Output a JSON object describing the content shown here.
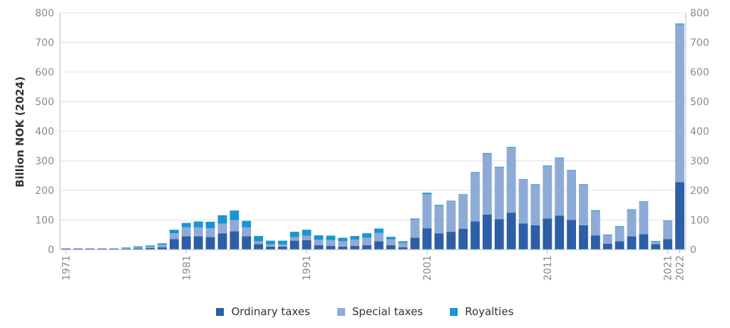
{
  "colors": {
    "ordinary": "#2d5fa8",
    "special": "#8eaad6",
    "royalties": "#1896d3",
    "grid": "#e3e3e3",
    "axis": "#bbbbbb"
  },
  "legend_labels": [
    "Ordinary taxes",
    "Special taxes",
    "Royalties"
  ],
  "chart_data": {
    "type": "bar",
    "stacked": true,
    "ylabel": "Billion NOK (2024)",
    "ylim": [
      0,
      800
    ],
    "yticks": [
      0,
      100,
      200,
      300,
      400,
      500,
      600,
      700,
      800
    ],
    "xticks": [
      "1971",
      "1981",
      "1991",
      "2001",
      "2011",
      "2021",
      "2022"
    ],
    "grid": true,
    "legend_position": "bottom",
    "categories": [
      "1971",
      "1972",
      "1973",
      "1974",
      "1975",
      "1976",
      "1977",
      "1978",
      "1979",
      "1980",
      "1981",
      "1982",
      "1983",
      "1984",
      "1985",
      "1986",
      "1987",
      "1988",
      "1989",
      "1990",
      "1991",
      "1992",
      "1993",
      "1994",
      "1995",
      "1996",
      "1997",
      "1998",
      "1999",
      "2000",
      "2001",
      "2002",
      "2003",
      "2004",
      "2005",
      "2006",
      "2007",
      "2008",
      "2009",
      "2010",
      "2011",
      "2012",
      "2013",
      "2014",
      "2015",
      "2016",
      "2017",
      "2018",
      "2019",
      "2020",
      "2021",
      "2022"
    ],
    "series": [
      {
        "name": "Ordinary taxes",
        "values": [
          0,
          0,
          0,
          0,
          0,
          3,
          4,
          5,
          8,
          35,
          45,
          45,
          42,
          55,
          62,
          45,
          18,
          10,
          10,
          30,
          32,
          15,
          12,
          10,
          12,
          15,
          28,
          15,
          8,
          40,
          72,
          55,
          60,
          70,
          95,
          118,
          103,
          125,
          88,
          82,
          105,
          115,
          100,
          82,
          48,
          20,
          28,
          45,
          52,
          18,
          35,
          228
        ]
      },
      {
        "name": "Special taxes",
        "values": [
          0,
          0,
          0,
          0,
          0,
          2,
          4,
          6,
          8,
          20,
          30,
          30,
          30,
          33,
          38,
          30,
          10,
          8,
          8,
          12,
          15,
          18,
          20,
          18,
          22,
          25,
          28,
          20,
          15,
          62,
          115,
          93,
          103,
          115,
          165,
          205,
          175,
          220,
          148,
          138,
          178,
          195,
          168,
          138,
          84,
          30,
          50,
          90,
          110,
          10,
          62,
          535
        ]
      },
      {
        "name": "Royalties",
        "values": [
          0,
          0,
          0,
          0,
          0,
          2,
          3,
          3,
          5,
          12,
          15,
          20,
          22,
          28,
          32,
          22,
          18,
          12,
          12,
          18,
          20,
          15,
          15,
          12,
          12,
          15,
          15,
          8,
          5,
          3,
          5,
          3,
          2,
          2,
          2,
          3,
          2,
          2,
          2,
          1,
          1,
          1,
          1,
          1,
          1,
          1,
          1,
          1,
          1,
          1,
          1,
          1
        ]
      }
    ]
  }
}
